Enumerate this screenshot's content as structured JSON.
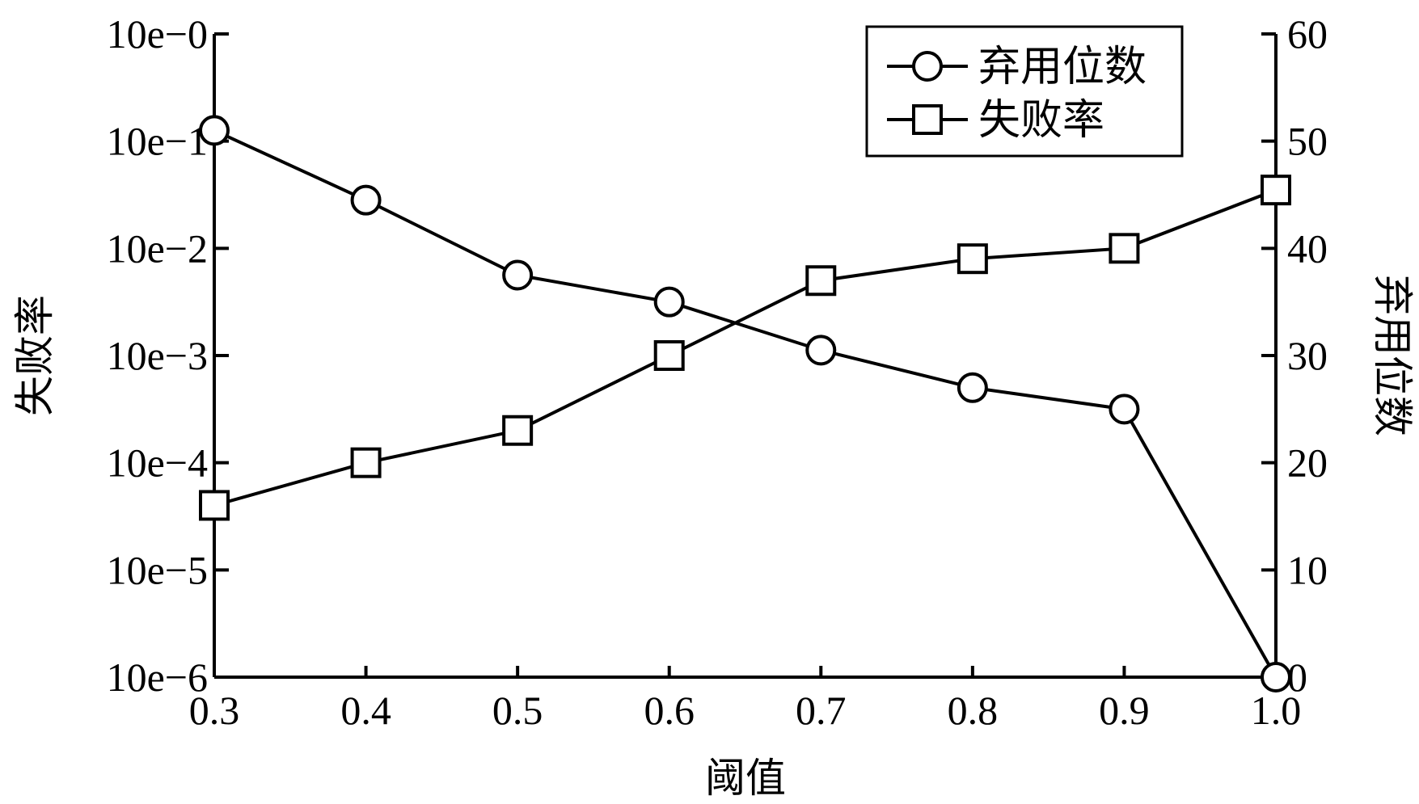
{
  "chart_data": {
    "type": "line",
    "xlabel": "阈值",
    "ylabel_left": "失败率",
    "ylabel_right": "弃用位数",
    "x": [
      0.3,
      0.4,
      0.5,
      0.6,
      0.7,
      0.8,
      0.9,
      1.0
    ],
    "x_tick_labels": [
      "0.3",
      "0.4",
      "0.5",
      "0.6",
      "0.7",
      "0.8",
      "0.9",
      "1.0"
    ],
    "xlim": [
      0.3,
      1.0
    ],
    "y_left": {
      "scale": "log",
      "ylim_exponent": [
        -6,
        0
      ],
      "tick_labels": [
        "10e−6",
        "10e−5",
        "10e−4",
        "10e−3",
        "10e−2",
        "10e−1",
        "10e−0"
      ]
    },
    "y_right": {
      "scale": "linear",
      "ylim": [
        0,
        60
      ],
      "tick_labels": [
        "0",
        "10",
        "20",
        "30",
        "40",
        "50",
        "60"
      ]
    },
    "series": [
      {
        "name": "弃用位数",
        "axis": "right",
        "marker": "circle",
        "values": [
          51,
          44.5,
          37.5,
          35,
          30.5,
          27,
          25,
          0
        ]
      },
      {
        "name": "失败率",
        "axis": "left",
        "marker": "square",
        "values": [
          4e-05,
          0.0001,
          0.0002,
          0.001,
          0.005,
          0.008,
          0.01,
          0.035
        ]
      }
    ],
    "legend": "top-right",
    "grid": false
  }
}
